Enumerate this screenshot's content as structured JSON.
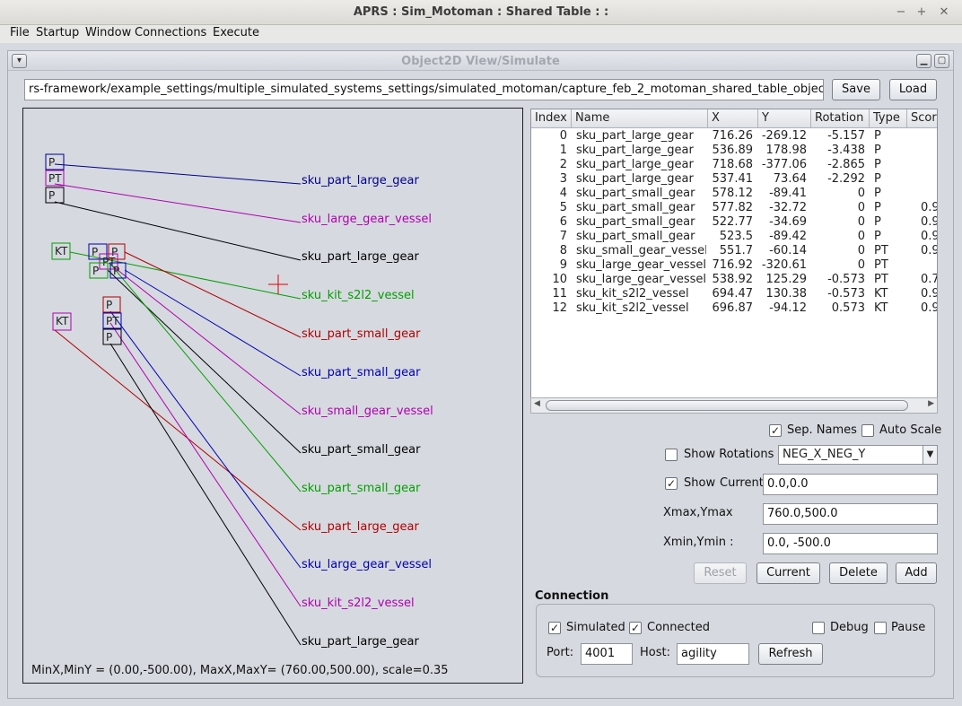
{
  "window": {
    "title": "APRS : Sim_Motoman : Shared Table : :",
    "minimize": "−",
    "maximize": "+",
    "close": "✕"
  },
  "menu": [
    "File",
    "Startup",
    "Window",
    "Connections",
    "Execute"
  ],
  "frame": {
    "title": "Object2D View/Simulate"
  },
  "file": {
    "path": "rs-framework/example_settings/multiple_simulated_systems_settings/simulated_motoman/capture_feb_2_motoman_shared_table_objects.csv",
    "save_label": "Save",
    "load_label": "Load"
  },
  "canvas": {
    "status": "MinX,MinY = (0.00,-500.00), MaxX,MaxY= (760.00,500.00), scale=0.35",
    "labels": [
      {
        "text": "sku_part_large_gear",
        "color": "#00008b"
      },
      {
        "text": "sku_large_gear_vessel",
        "color": "#b000b0"
      },
      {
        "text": "sku_part_large_gear",
        "color": "#000000"
      },
      {
        "text": "sku_kit_s2l2_vessel",
        "color": "#00a000"
      },
      {
        "text": "sku_part_small_gear",
        "color": "#b00000"
      },
      {
        "text": "sku_part_small_gear",
        "color": "#0000b0"
      },
      {
        "text": "sku_small_gear_vessel",
        "color": "#b000b0"
      },
      {
        "text": "sku_part_small_gear",
        "color": "#000000"
      },
      {
        "text": "sku_part_small_gear",
        "color": "#00a000"
      },
      {
        "text": "sku_part_large_gear",
        "color": "#b00000"
      },
      {
        "text": "sku_large_gear_vessel",
        "color": "#0000b0"
      },
      {
        "text": "sku_kit_s2l2_vessel",
        "color": "#b000b0"
      },
      {
        "text": "sku_part_large_gear",
        "color": "#000000"
      }
    ],
    "markers": [
      {
        "text": "P",
        "color": "#00008b"
      },
      {
        "text": "PT",
        "color": "#b000b0"
      },
      {
        "text": "P",
        "color": "#000000"
      },
      {
        "text": "KT",
        "color": "#00a000"
      },
      {
        "text": "P",
        "color": "#0000b0"
      },
      {
        "text": "P",
        "color": "#b00000"
      },
      {
        "text": "PT",
        "color": "#b000b0"
      },
      {
        "text": "P",
        "color": "#00a000"
      },
      {
        "text": "P",
        "color": "#0000b0"
      },
      {
        "text": "KT",
        "color": "#b000b0"
      },
      {
        "text": "P",
        "color": "#b00000"
      },
      {
        "text": "PT",
        "color": "#0000b0"
      },
      {
        "text": "P",
        "color": "#000000"
      }
    ]
  },
  "table": {
    "columns": [
      "Index",
      "Name",
      "X",
      "Y",
      "Rotation",
      "Type",
      "Scor"
    ],
    "rows": [
      [
        "0",
        "sku_part_large_gear",
        "716.26",
        "-269.12",
        "-5.157",
        "P",
        ""
      ],
      [
        "1",
        "sku_part_large_gear",
        "536.89",
        "178.98",
        "-3.438",
        "P",
        ""
      ],
      [
        "2",
        "sku_part_large_gear",
        "718.68",
        "-377.06",
        "-2.865",
        "P",
        ""
      ],
      [
        "3",
        "sku_part_large_gear",
        "537.41",
        "73.64",
        "-2.292",
        "P",
        ""
      ],
      [
        "4",
        "sku_part_small_gear",
        "578.12",
        "-89.41",
        "0",
        "P",
        ""
      ],
      [
        "5",
        "sku_part_small_gear",
        "577.82",
        "-32.72",
        "0",
        "P",
        "0.9"
      ],
      [
        "6",
        "sku_part_small_gear",
        "522.77",
        "-34.69",
        "0",
        "P",
        "0.9"
      ],
      [
        "7",
        "sku_part_small_gear",
        "523.5",
        "-89.42",
        "0",
        "P",
        "0.9"
      ],
      [
        "8",
        "sku_small_gear_vessel",
        "551.7",
        "-60.14",
        "0",
        "PT",
        "0.9"
      ],
      [
        "9",
        "sku_large_gear_vessel",
        "716.92",
        "-320.61",
        "0",
        "PT",
        ""
      ],
      [
        "10",
        "sku_large_gear_vessel",
        "538.92",
        "125.29",
        "-0.573",
        "PT",
        "0.7"
      ],
      [
        "11",
        "sku_kit_s2l2_vessel",
        "694.47",
        "130.38",
        "-0.573",
        "KT",
        "0.9"
      ],
      [
        "12",
        "sku_kit_s2l2_vessel",
        "696.87",
        "-94.12",
        "0.573",
        "KT",
        "0.9"
      ]
    ]
  },
  "options": {
    "sep_names_label": "Sep. Names",
    "sep_names_checked": "✓",
    "auto_scale_label": "Auto Scale",
    "show_rotations_label": "Show Rotations",
    "rotation_select": "NEG_X_NEG_Y",
    "show_current_label": "Show",
    "show_current_label2": "Current",
    "show_current_checked": "✓",
    "current_value": "0.0,0.0",
    "xmax_ymax_label": "Xmax,Ymax",
    "xmax_ymax_value": "760.0,500.0",
    "xmin_ymin_label": "Xmin,Ymin :",
    "xmin_ymin_value": "0.0, -500.0",
    "reset_label": "Reset",
    "current_label": "Current",
    "delete_label": "Delete",
    "add_label": "Add"
  },
  "connection": {
    "heading": "Connection",
    "simulated_label": "Simulated",
    "simulated_checked": "✓",
    "connected_label": "Connected",
    "connected_checked": "✓",
    "debug_label": "Debug",
    "pause_label": "Pause",
    "port_label": "Port:",
    "port_value": "4001",
    "host_label": "Host:",
    "host_value": "agility",
    "refresh_label": "Refresh"
  }
}
